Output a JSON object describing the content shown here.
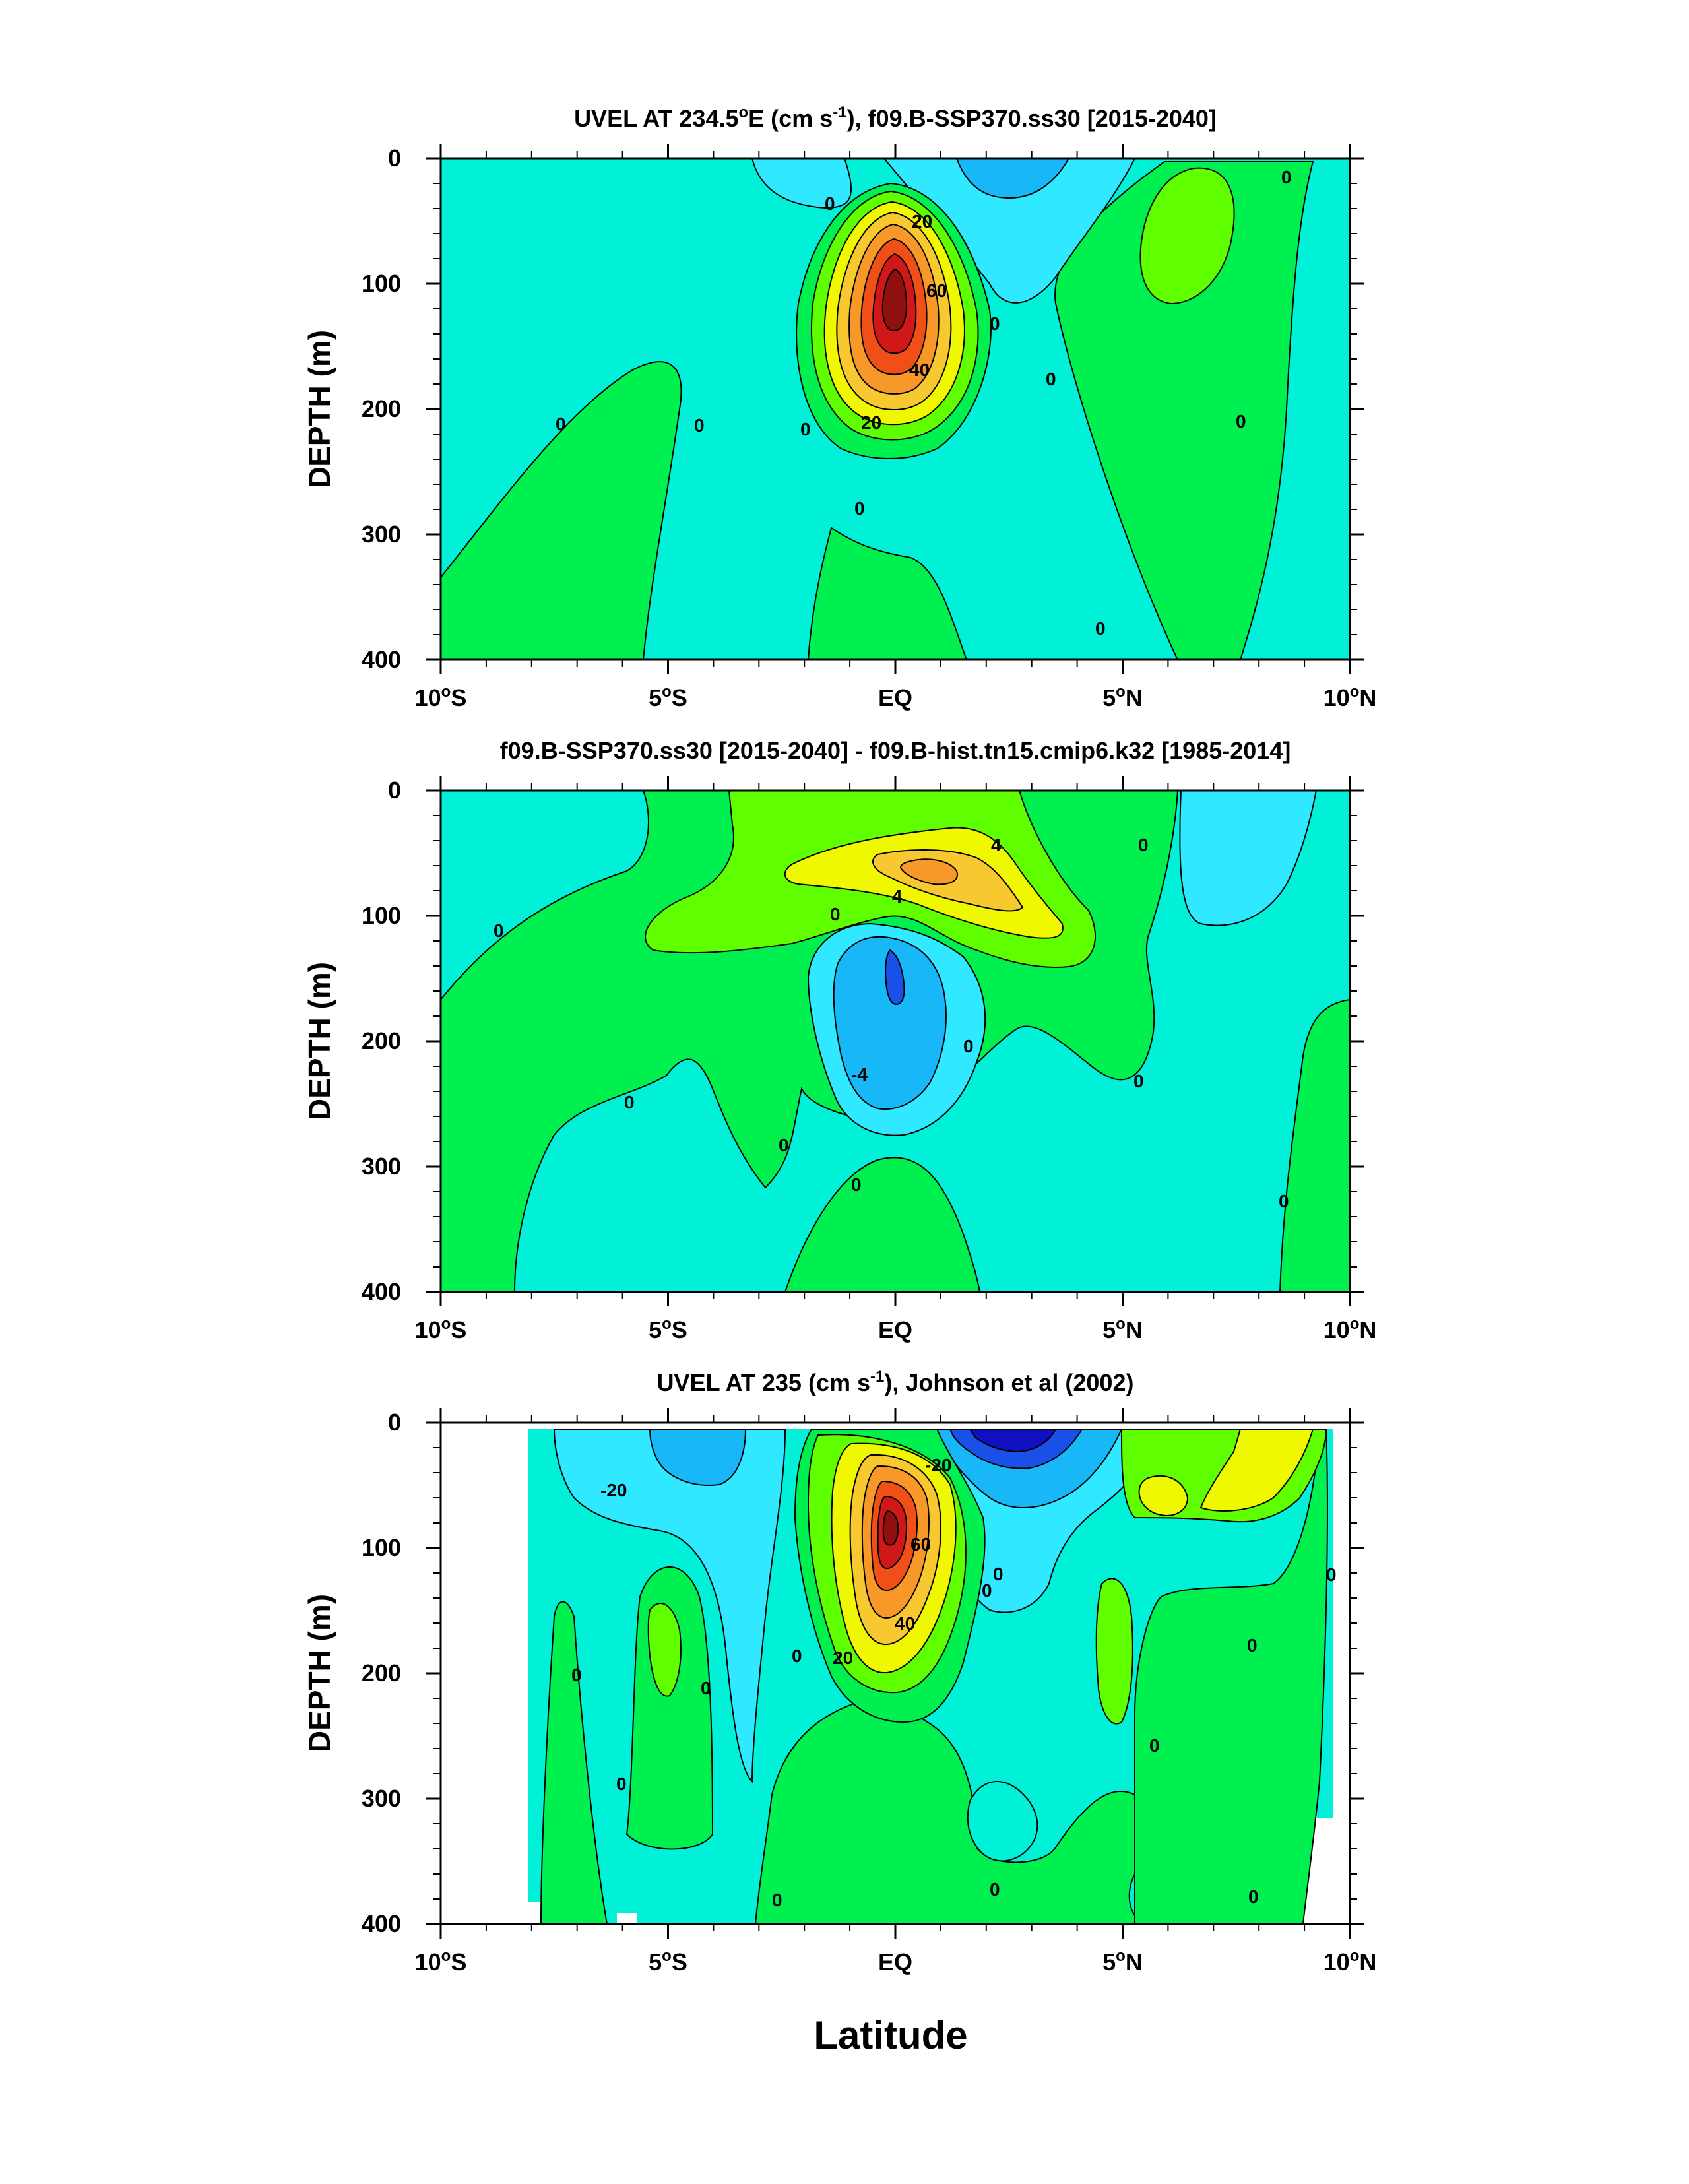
{
  "colors": {
    "c_m60": "#1010c0",
    "c_m40": "#1850e8",
    "c_m20": "#18b8f8",
    "c_m10": "#30e8ff",
    "c_0": "#00f0d8",
    "c_p0": "#00f050",
    "c_p10": "#60ff00",
    "c_p20": "#f0f800",
    "c_p30": "#f8c830",
    "c_p40": "#f89828",
    "c_p60": "#f05018",
    "c_p80": "#d01818",
    "c_p100": "#901010"
  },
  "chart_data": [
    {
      "type": "contour",
      "title_main": "UVEL AT 234.5",
      "title_deg": "o",
      "title_mid": "E (cm s",
      "title_sup": "-1",
      "title_end": "), f09.B-SSP370.ss30 [2015-2040]",
      "ylabel": "DEPTH (m)",
      "xlim": [
        -10,
        10
      ],
      "ylim": [
        400,
        0
      ],
      "x_ticks": [
        {
          "base": "10",
          "deg": "o",
          "dir": "S"
        },
        {
          "base": "5",
          "deg": "o",
          "dir": "S"
        },
        {
          "base": "EQ",
          "deg": "",
          "dir": ""
        },
        {
          "base": "5",
          "deg": "o",
          "dir": "N"
        },
        {
          "base": "10",
          "deg": "o",
          "dir": "N"
        }
      ],
      "y_ticks": [
        "0",
        "100",
        "200",
        "300",
        "400"
      ],
      "contour_labels": [
        "0",
        "0",
        "0",
        "0",
        "0",
        "0",
        "0",
        "0",
        "0",
        "0",
        "20",
        "20",
        "40",
        "60"
      ],
      "features": [
        {
          "name": "equatorial undercurrent",
          "lat": 0.0,
          "depth": 100,
          "max": 100
        },
        {
          "name": "surface westward flow",
          "lat": 2.2,
          "depth": 10,
          "min": -30
        },
        {
          "name": "eastward flow 7N",
          "lat": 7.0,
          "depth": 80,
          "max": 10
        }
      ]
    },
    {
      "type": "contour",
      "title": "f09.B-SSP370.ss30 [2015-2040] - f09.B-hist.tn15.cmip6.k32 [1985-2014]",
      "ylabel": "DEPTH (m)",
      "xlim": [
        -10,
        10
      ],
      "ylim": [
        400,
        0
      ],
      "x_ticks": [
        {
          "base": "10",
          "deg": "o",
          "dir": "S"
        },
        {
          "base": "5",
          "deg": "o",
          "dir": "S"
        },
        {
          "base": "EQ",
          "deg": "",
          "dir": ""
        },
        {
          "base": "5",
          "deg": "o",
          "dir": "N"
        },
        {
          "base": "10",
          "deg": "o",
          "dir": "N"
        }
      ],
      "y_ticks": [
        "0",
        "100",
        "200",
        "300",
        "400"
      ],
      "contour_labels": [
        "4",
        "4",
        "0",
        "0",
        "0",
        "0",
        "0",
        "0",
        "0",
        "0",
        "0",
        "0",
        "-4"
      ],
      "features": [
        {
          "name": "positive anomaly",
          "lat": 1.0,
          "depth": 65,
          "max": 8
        },
        {
          "name": "negative anomaly",
          "lat": 0.0,
          "depth": 150,
          "min": -10
        }
      ]
    },
    {
      "type": "contour",
      "title_main": "UVEL AT 235 (cm s",
      "title_sup": "-1",
      "title_end": "), Johnson et al (2002)",
      "ylabel": "DEPTH (m)",
      "xlabel": "Latitude",
      "xlim": [
        -10,
        10
      ],
      "ylim": [
        400,
        0
      ],
      "x_ticks": [
        {
          "base": "10",
          "deg": "o",
          "dir": "S"
        },
        {
          "base": "5",
          "deg": "o",
          "dir": "S"
        },
        {
          "base": "EQ",
          "deg": "",
          "dir": ""
        },
        {
          "base": "5",
          "deg": "o",
          "dir": "N"
        },
        {
          "base": "10",
          "deg": "o",
          "dir": "N"
        }
      ],
      "y_ticks": [
        "0",
        "100",
        "200",
        "300",
        "400"
      ],
      "contour_labels": [
        "-20",
        "-20",
        "20",
        "20",
        "40",
        "60",
        "0",
        "0",
        "0",
        "0",
        "0",
        "0",
        "0",
        "0",
        "0",
        "0",
        "0",
        "0",
        "0"
      ],
      "features": [
        {
          "name": "equatorial undercurrent",
          "lat": -0.1,
          "depth": 90,
          "max": 110
        },
        {
          "name": "surface westward flow",
          "lat": 2.2,
          "depth": 15,
          "min": -60
        }
      ]
    }
  ]
}
